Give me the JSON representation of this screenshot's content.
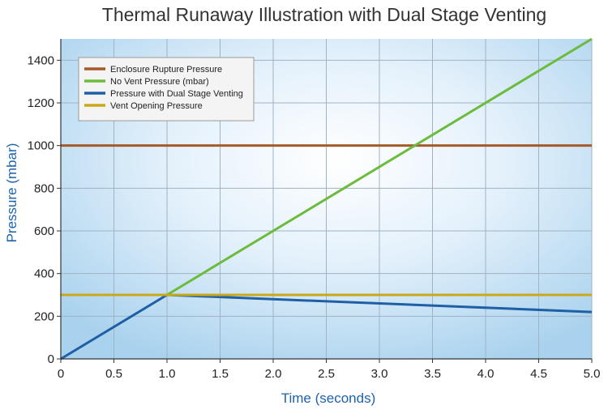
{
  "chart_data": {
    "type": "line",
    "title": "Thermal Runaway Illustration with Dual Stage Venting",
    "xlabel": "Time (seconds)",
    "ylabel": "Pressure (mbar)",
    "xlim": [
      0,
      5
    ],
    "ylim": [
      0,
      1500
    ],
    "x_ticks": [
      "0",
      "0.5",
      "1.0",
      "1.5",
      "2.0",
      "2.5",
      "3.0",
      "3.5",
      "4.0",
      "4.5",
      "5.0"
    ],
    "x_tick_values": [
      0,
      0.5,
      1.0,
      1.5,
      2.0,
      2.5,
      3.0,
      3.5,
      4.0,
      4.5,
      5.0
    ],
    "y_ticks": [
      "0",
      "200",
      "400",
      "600",
      "800",
      "1000",
      "1200",
      "1400"
    ],
    "y_tick_values": [
      0,
      200,
      400,
      600,
      800,
      1000,
      1200,
      1400
    ],
    "grid": true,
    "legend_position": "top-left",
    "series": [
      {
        "name": "Enclosure Rupture Pressure",
        "color": "#a55a2a",
        "x": [
          0,
          5
        ],
        "y": [
          1000,
          1000
        ]
      },
      {
        "name": "No Vent Pressure (mbar)",
        "color": "#6cbb3c",
        "x": [
          1,
          5
        ],
        "y": [
          300,
          1500
        ]
      },
      {
        "name": "Pressure with Dual Stage Venting",
        "color": "#1f5fa6",
        "x": [
          0,
          1,
          5
        ],
        "y": [
          0,
          300,
          220
        ]
      },
      {
        "name": "Vent Opening Pressure",
        "color": "#c9a91a",
        "x": [
          0,
          5
        ],
        "y": [
          300,
          300
        ]
      }
    ]
  }
}
